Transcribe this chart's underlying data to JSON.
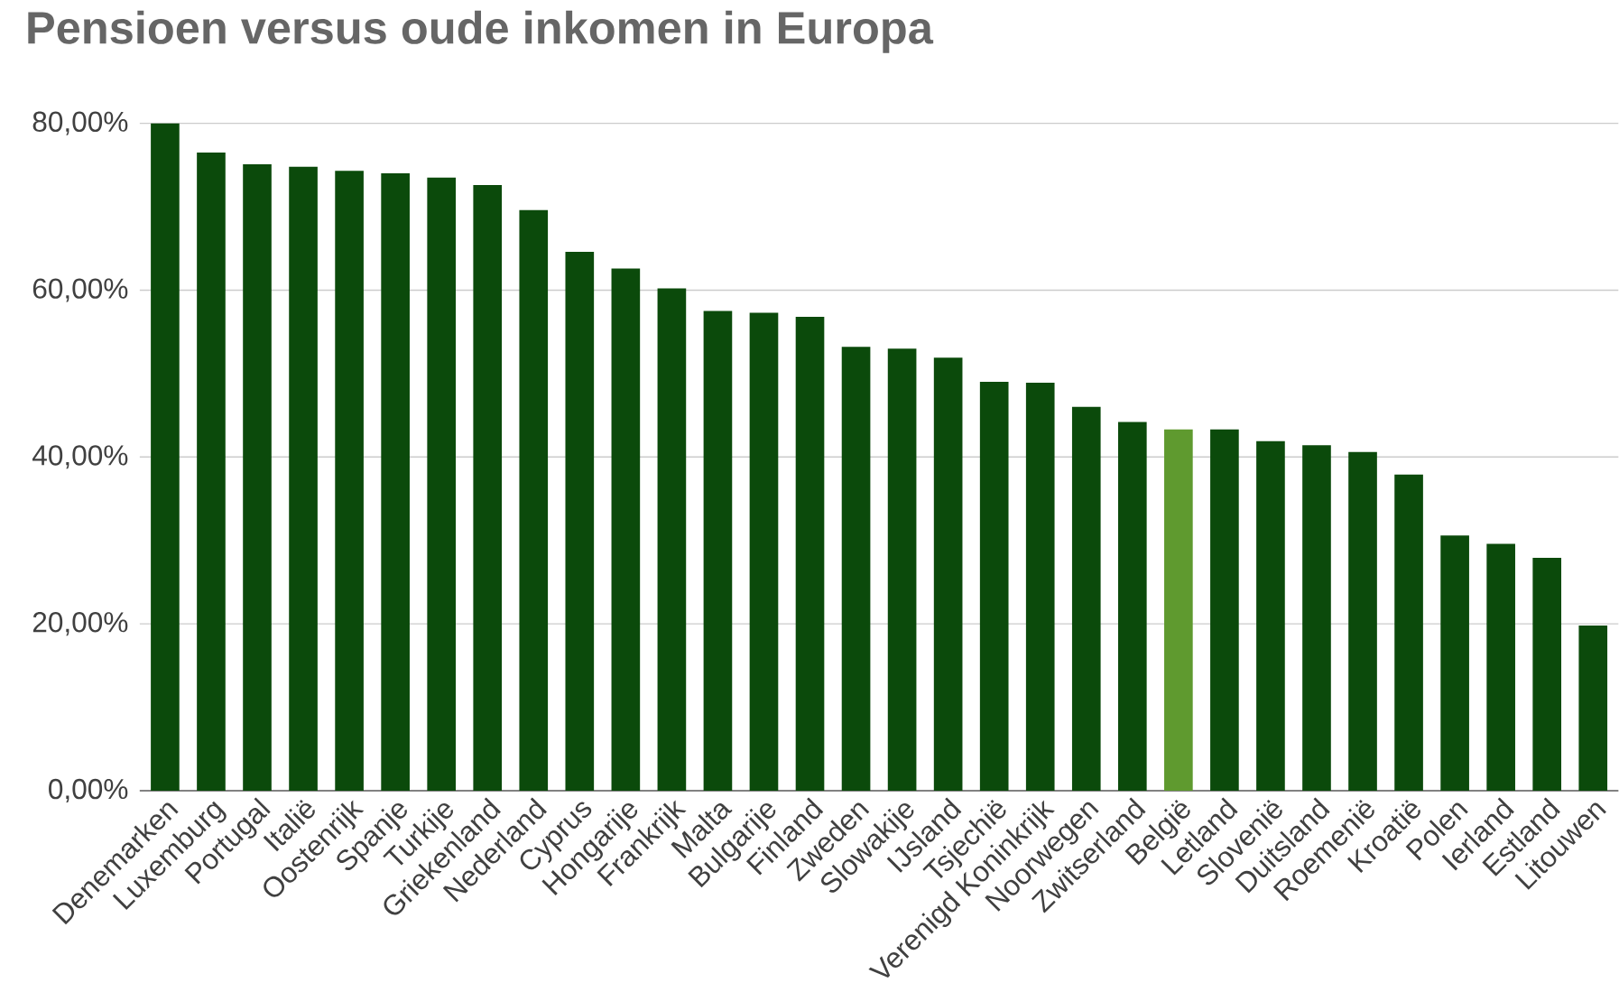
{
  "chart_data": {
    "type": "bar",
    "title": "Pensioen versus oude inkomen in Europa",
    "categories": [
      "Denemarken",
      "Luxemburg",
      "Portugal",
      "Italië",
      "Oostenrijk",
      "Spanje",
      "Turkije",
      "Griekenland",
      "Nederland",
      "Cyprus",
      "Hongarije",
      "Frankrijk",
      "Malta",
      "Bulgarije",
      "Finland",
      "Zweden",
      "Slowakije",
      "IJsland",
      "Tsjechië",
      "Verenigd Koninkrijk",
      "Noorwegen",
      "Zwitserland",
      "België",
      "Letland",
      "Slovenië",
      "Duitsland",
      "Roemenië",
      "Kroatië",
      "Polen",
      "Ierland",
      "Estland",
      "Litouwen"
    ],
    "values": [
      80.0,
      76.5,
      75.1,
      74.8,
      74.3,
      74.0,
      73.5,
      72.6,
      69.6,
      64.6,
      62.6,
      60.2,
      57.5,
      57.3,
      56.8,
      53.2,
      53.0,
      51.9,
      49.0,
      48.9,
      46.0,
      44.2,
      43.3,
      43.3,
      41.9,
      41.4,
      40.6,
      37.9,
      30.6,
      29.6,
      27.9,
      19.8
    ],
    "colors": [
      "#0b4a0b",
      "#0b4a0b",
      "#0b4a0b",
      "#0b4a0b",
      "#0b4a0b",
      "#0b4a0b",
      "#0b4a0b",
      "#0b4a0b",
      "#0b4a0b",
      "#0b4a0b",
      "#0b4a0b",
      "#0b4a0b",
      "#0b4a0b",
      "#0b4a0b",
      "#0b4a0b",
      "#0b4a0b",
      "#0b4a0b",
      "#0b4a0b",
      "#0b4a0b",
      "#0b4a0b",
      "#0b4a0b",
      "#0b4a0b",
      "#5f9a2f",
      "#0b4a0b",
      "#0b4a0b",
      "#0b4a0b",
      "#0b4a0b",
      "#0b4a0b",
      "#0b4a0b",
      "#0b4a0b",
      "#0b4a0b",
      "#0b4a0b"
    ],
    "ylim": [
      0,
      80
    ],
    "yticks": [
      {
        "value": 0,
        "label": "0,00%"
      },
      {
        "value": 20,
        "label": "20,00%"
      },
      {
        "value": 40,
        "label": "40,00%"
      },
      {
        "value": 60,
        "label": "60,00%"
      },
      {
        "value": 80,
        "label": "80,00%"
      }
    ],
    "grid": "y"
  }
}
